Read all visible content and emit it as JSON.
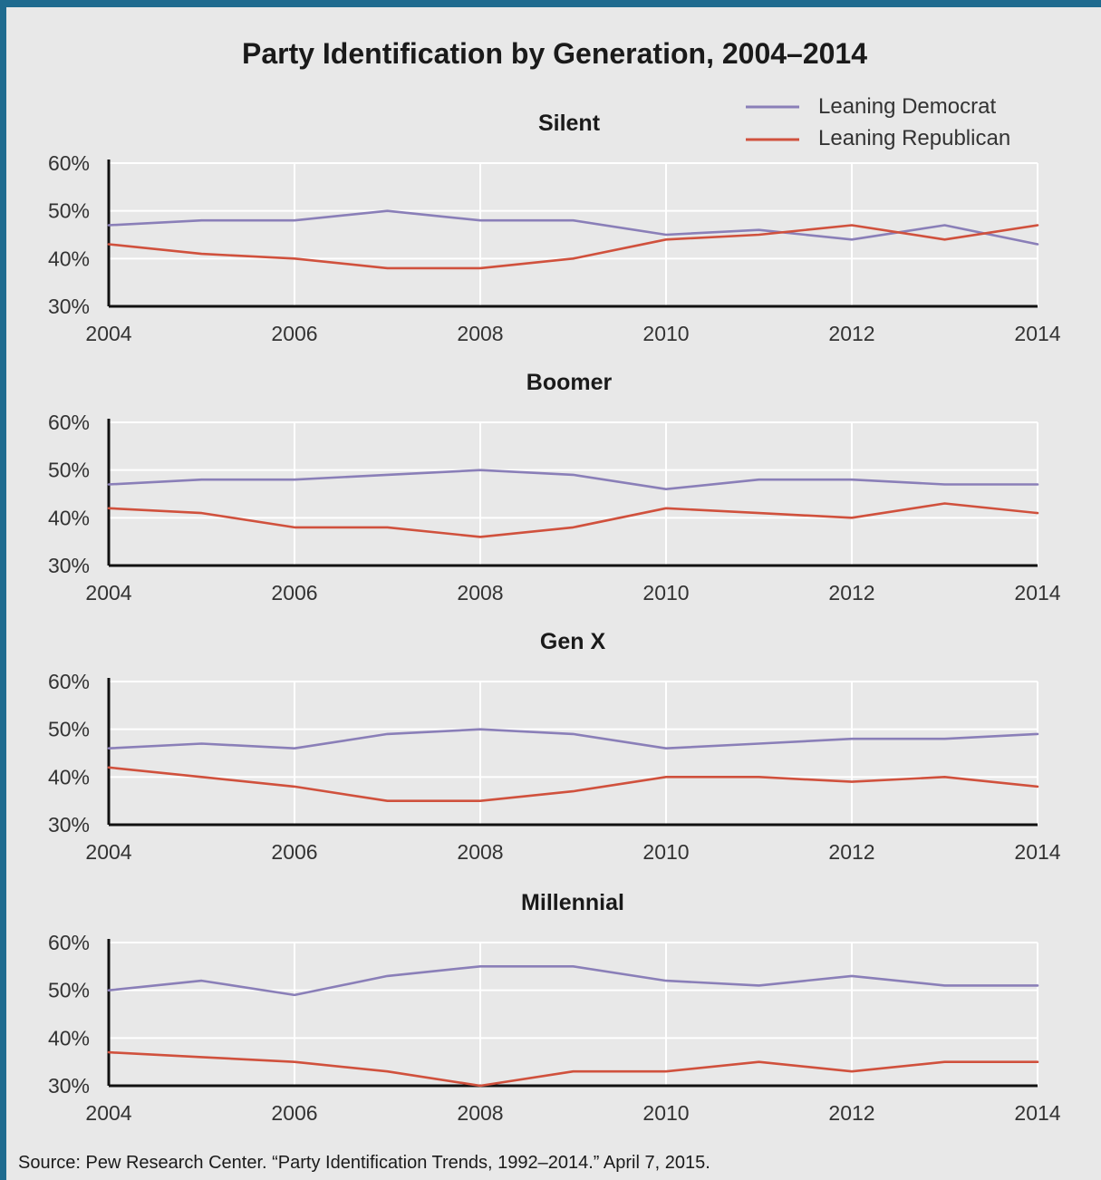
{
  "colors": {
    "background": "#e8e8e8",
    "border": "#1f6b8f",
    "democrat": "#8a7fb8",
    "republican": "#d0513d",
    "grid": "#ffffff",
    "axis": "#111111"
  },
  "chart_data": {
    "type": "line",
    "title": "Party Identification by Generation, 2004–2014",
    "source": "Source: Pew Research Center. “Party Identification Trends, 1992–2014.” April 7, 2015.",
    "legend_placement": "top-right",
    "legend": [
      {
        "name": "Leaning Democrat",
        "color": "#8a7fb8"
      },
      {
        "name": "Leaning Republican",
        "color": "#d0513d"
      }
    ],
    "x": [
      2004,
      2005,
      2006,
      2007,
      2008,
      2009,
      2010,
      2011,
      2012,
      2013,
      2014
    ],
    "x_ticks": [
      "2004",
      "2006",
      "2008",
      "2010",
      "2012",
      "2014"
    ],
    "y_ticks": [
      "30%",
      "40%",
      "50%",
      "60%"
    ],
    "xlim": [
      2004,
      2014
    ],
    "ylim": [
      30,
      60
    ],
    "grid": true,
    "panels": [
      {
        "title": "Silent",
        "series": [
          {
            "name": "Leaning Democrat",
            "values": [
              47,
              48,
              48,
              50,
              48,
              48,
              45,
              46,
              44,
              47,
              43
            ]
          },
          {
            "name": "Leaning Republican",
            "values": [
              43,
              41,
              40,
              38,
              38,
              40,
              44,
              45,
              47,
              44,
              47
            ]
          }
        ]
      },
      {
        "title": "Boomer",
        "series": [
          {
            "name": "Leaning Democrat",
            "values": [
              47,
              48,
              48,
              49,
              50,
              49,
              46,
              48,
              48,
              47,
              47
            ]
          },
          {
            "name": "Leaning Republican",
            "values": [
              42,
              41,
              38,
              38,
              36,
              38,
              42,
              41,
              40,
              43,
              41
            ]
          }
        ]
      },
      {
        "title": "Gen X",
        "series": [
          {
            "name": "Leaning Democrat",
            "values": [
              46,
              47,
              46,
              49,
              50,
              49,
              46,
              47,
              48,
              48,
              49
            ]
          },
          {
            "name": "Leaning Republican",
            "values": [
              42,
              40,
              38,
              35,
              35,
              37,
              40,
              40,
              39,
              40,
              38
            ]
          }
        ]
      },
      {
        "title": "Millennial",
        "series": [
          {
            "name": "Leaning Democrat",
            "values": [
              50,
              52,
              49,
              53,
              55,
              55,
              52,
              51,
              53,
              51,
              51
            ]
          },
          {
            "name": "Leaning Republican",
            "values": [
              37,
              36,
              35,
              33,
              30,
              33,
              33,
              35,
              33,
              35,
              35
            ]
          }
        ]
      }
    ]
  }
}
